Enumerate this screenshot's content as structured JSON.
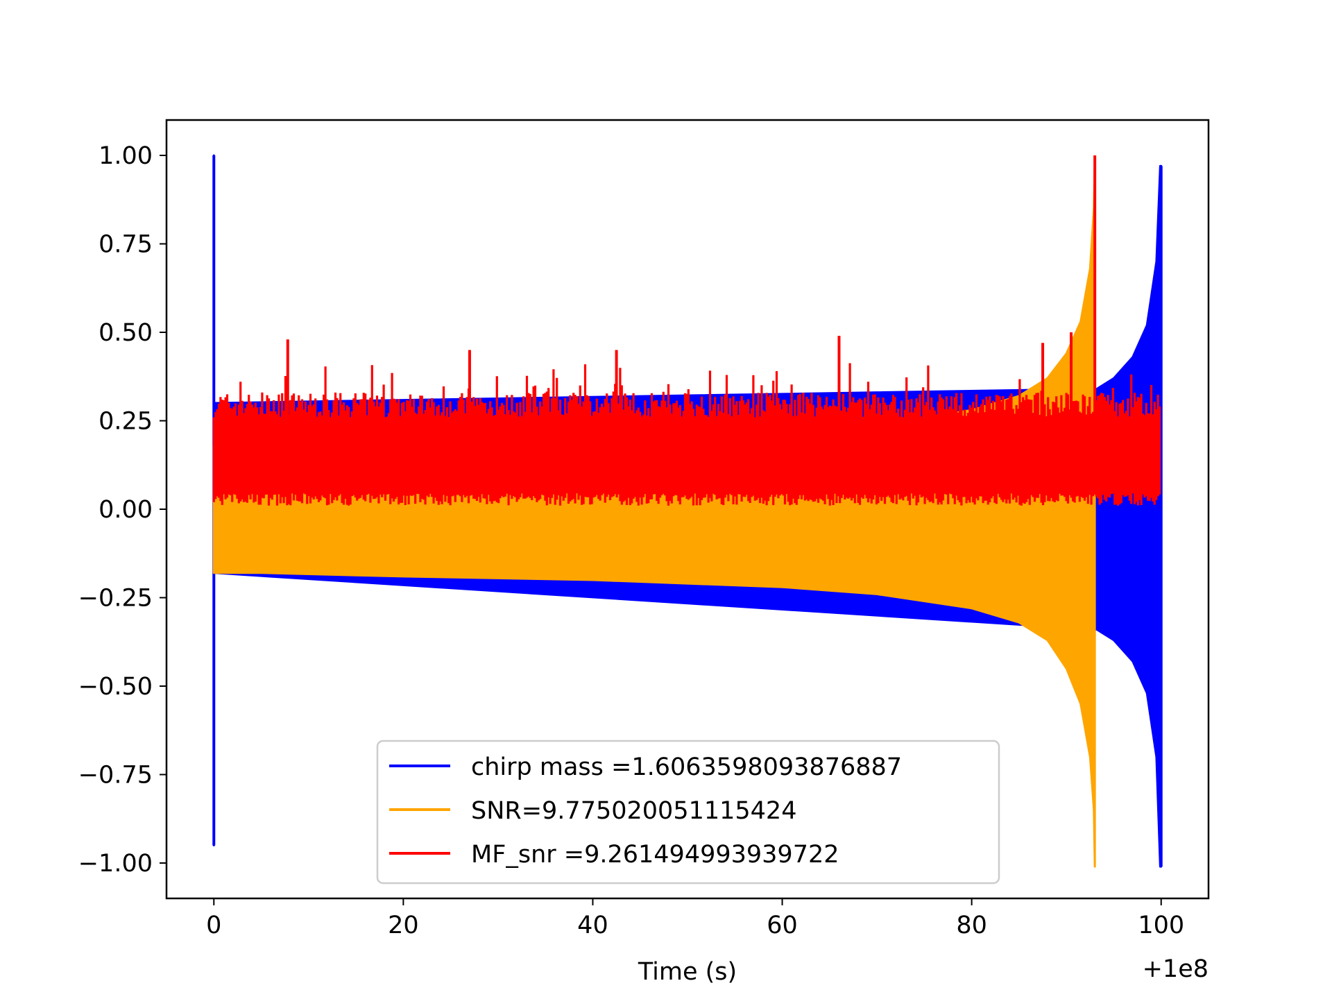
{
  "chart_data": {
    "type": "line",
    "title": "",
    "xlabel": "Time (s)",
    "ylabel": "",
    "x_offset_label": "+1e8",
    "xlim": [
      -5,
      105
    ],
    "ylim": [
      -1.1,
      1.1
    ],
    "xticks": [
      0,
      20,
      40,
      60,
      80,
      100
    ],
    "xtick_labels": [
      "0",
      "20",
      "40",
      "60",
      "80",
      "100"
    ],
    "yticks": [
      1.0,
      0.75,
      0.5,
      0.25,
      0.0,
      -0.25,
      -0.5,
      -0.75,
      -1.0
    ],
    "ytick_labels": [
      "1.00",
      "0.75",
      "0.50",
      "0.25",
      "0.00",
      "−0.25",
      "−0.50",
      "−0.75",
      "−1.00"
    ],
    "grid": false,
    "legend_position": "lower-center",
    "series": [
      {
        "name": "chirp mass =1.6063598093876887",
        "color": "#0000ff",
        "x": [
          0,
          0.01,
          0.02,
          93.0,
          93.2,
          95,
          97,
          98.5,
          99.5,
          99.9,
          100.0
        ],
        "upper": [
          1.0,
          0.65,
          0.3,
          0.34,
          0.34,
          0.37,
          0.43,
          0.52,
          0.7,
          0.97,
          0.97
        ],
        "lower": [
          -0.95,
          -0.6,
          -0.18,
          -0.34,
          -0.34,
          -0.37,
          -0.43,
          -0.52,
          -0.7,
          -1.01,
          -1.01
        ]
      },
      {
        "name": "SNR=9.775020051115424",
        "color": "#ffa500",
        "x": [
          0,
          5,
          20,
          40,
          60,
          70,
          80,
          85,
          88,
          90,
          91.5,
          92.5,
          92.9,
          93.0
        ],
        "upper": [
          0.18,
          0.18,
          0.185,
          0.19,
          0.22,
          0.24,
          0.28,
          0.32,
          0.37,
          0.44,
          0.53,
          0.68,
          0.85,
          0.99
        ],
        "lower": [
          -0.18,
          -0.18,
          -0.19,
          -0.2,
          -0.22,
          -0.24,
          -0.28,
          -0.32,
          -0.37,
          -0.45,
          -0.55,
          -0.7,
          -0.85,
          -1.01
        ]
      },
      {
        "name": "MF_snr =9.261494993939722",
        "color": "#ff0000",
        "x_range": [
          0,
          100
        ],
        "typical_range": [
          0.0,
          0.33
        ],
        "peaks": [
          [
            7.8,
            0.48
          ],
          [
            27,
            0.45
          ],
          [
            42.5,
            0.45
          ],
          [
            66,
            0.49
          ],
          [
            87.5,
            0.47
          ],
          [
            90.5,
            0.5
          ],
          [
            93.0,
            1.0
          ]
        ]
      }
    ]
  }
}
